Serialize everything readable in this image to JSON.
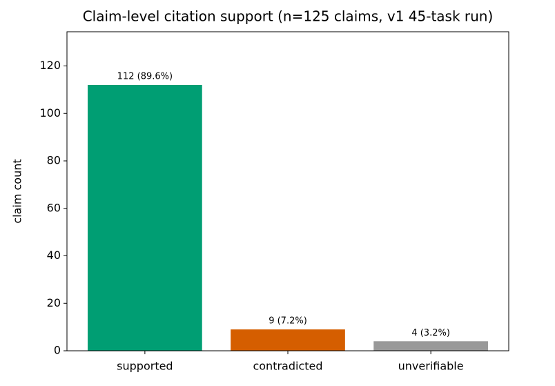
{
  "chart_data": {
    "type": "bar",
    "title": "Claim-level citation support (n=125 claims, v1 45-task run)",
    "y_label": "claim count",
    "categories": [
      "supported",
      "contradicted",
      "unverifiable"
    ],
    "values": [
      112,
      9,
      4
    ],
    "value_labels": [
      "112 (89.6%)",
      "9 (7.2%)",
      "4 (3.2%)"
    ],
    "colors": [
      "#009e73",
      "#d55e00",
      "#999999"
    ],
    "ylim": [
      0,
      134.4
    ],
    "yticks": [
      0,
      20,
      40,
      60,
      80,
      100,
      120
    ],
    "grid": false
  }
}
